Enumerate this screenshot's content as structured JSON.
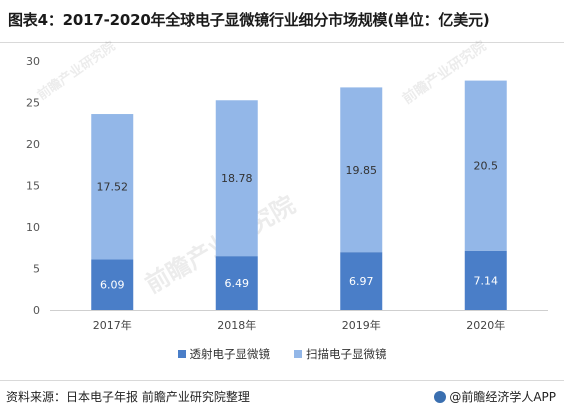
{
  "title": "图表4：2017-2020年全球电子显微镜行业细分市场规模(单位：亿美元)",
  "source": "资料来源：日本电子年报 前瞻产业研究院整理",
  "brand": "@前瞻经济学人APP",
  "watermark": "前瞻产业研究院",
  "colors": {
    "transmission": "#4a7ec8",
    "scanning": "#93b7e8"
  },
  "chart_data": {
    "type": "bar",
    "stacked": true,
    "categories": [
      "2017年",
      "2018年",
      "2019年",
      "2020年"
    ],
    "series": [
      {
        "name": "透射电子显微镜",
        "values": [
          6.09,
          6.49,
          6.97,
          7.14
        ],
        "labels": [
          "6.09",
          "6.49",
          "6.97",
          "7.14"
        ]
      },
      {
        "name": "扫描电子显微镜",
        "values": [
          17.52,
          18.78,
          19.85,
          20.5
        ],
        "labels": [
          "17.52",
          "18.78",
          "19.85",
          "20.5"
        ]
      }
    ],
    "ylim": [
      0,
      30
    ],
    "yticks": [
      "0",
      "5",
      "10",
      "15",
      "20",
      "25",
      "30"
    ],
    "grid": false,
    "legend": "bottom"
  }
}
